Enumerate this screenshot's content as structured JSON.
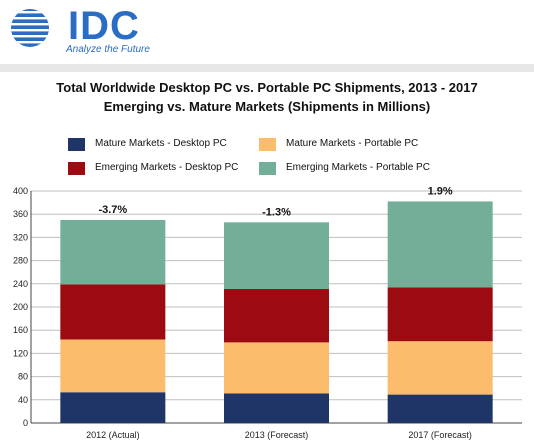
{
  "header": {
    "logo_text": "IDC",
    "tagline": "Analyze the Future"
  },
  "chart_data": {
    "type": "bar",
    "stacked": true,
    "title": "Total Worldwide Desktop PC vs. Portable PC Shipments, 2013 - 2017",
    "subtitle": "Emerging vs. Mature Markets (Shipments in Millions)",
    "categories": [
      "2012 (Actual)",
      "2013 (Forecast)",
      "2017 (Forecast)"
    ],
    "series": [
      {
        "name": "Mature Markets - Desktop PC",
        "color": "#1f3467",
        "values": [
          53,
          51,
          49
        ]
      },
      {
        "name": "Mature Markets - Portable PC",
        "color": "#fbbd6b",
        "values": [
          91,
          88,
          92
        ]
      },
      {
        "name": "Emerging Markets - Desktop PC",
        "color": "#9b0b11",
        "values": [
          95,
          92,
          93
        ]
      },
      {
        "name": "Emerging Markets - Portable PC",
        "color": "#73af98",
        "values": [
          111,
          115,
          148
        ]
      }
    ],
    "growth_labels": [
      "-3.7%",
      "-1.3%",
      "1.9%"
    ],
    "ylim": [
      0,
      400
    ],
    "yticks": [
      0,
      40,
      80,
      120,
      160,
      200,
      240,
      280,
      320,
      360,
      400
    ],
    "grid": true,
    "legend_position": "top",
    "xlabel": "",
    "ylabel": ""
  }
}
